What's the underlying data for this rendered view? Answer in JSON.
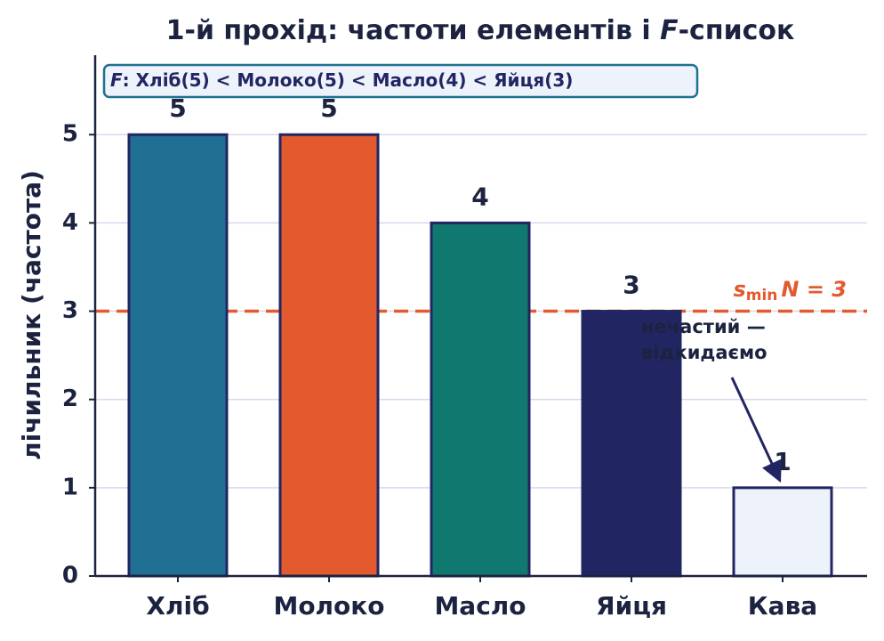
{
  "chart_data": {
    "type": "bar",
    "title": [
      "1-й прохід: частоти елементів і ",
      "F",
      "-список"
    ],
    "y_label": "лічильник (частота)",
    "categories": [
      "Хліб",
      "Молоко",
      "Масло",
      "Яйця",
      "Кава"
    ],
    "values": [
      5,
      5,
      4,
      3,
      1
    ],
    "colors": [
      "#1f7093",
      "#e35a2f",
      "#117870",
      "#212663",
      "#eef2fb"
    ],
    "ylim": [
      0,
      5.9
    ],
    "yticks": [
      0,
      1,
      2,
      3,
      4,
      5
    ],
    "grid": true,
    "threshold": {
      "value": 3,
      "symbol": "s",
      "subscript": "min",
      "label": "N = 3",
      "color": "#e35a2f"
    },
    "f_list": {
      "symbol": "F",
      "text": ": Хліб(5) < Молоко(5) < Масло(4) < Яйця(3)"
    },
    "annotation": {
      "lines": [
        "нечастий —",
        "відкидаємо"
      ]
    }
  }
}
